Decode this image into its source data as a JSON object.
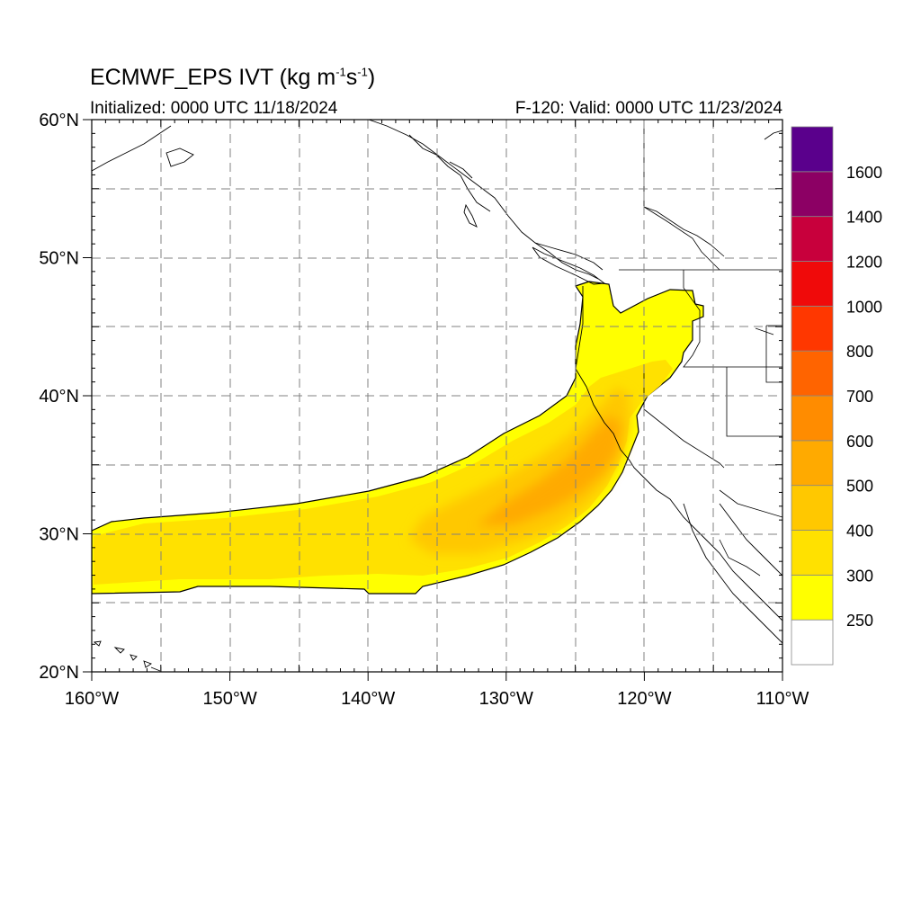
{
  "header": {
    "title_main": "ECMWF_EPS IVT (kg m",
    "title_sup1": "-1",
    "title_mid": "s",
    "title_sup2": "-1",
    "title_end": ")",
    "initialized": "Initialized: 0000 UTC 11/18/2024",
    "valid": "F-120: Valid: 0000 UTC 11/23/2024"
  },
  "map": {
    "projection": "cylindrical equidistant",
    "lon_range": [
      -160,
      -110
    ],
    "lat_range": [
      20,
      60
    ],
    "gridlines": "dashed",
    "lat_labels": [
      "20°N",
      "30°N",
      "40°N",
      "50°N",
      "60°N"
    ],
    "lon_labels": [
      "160°W",
      "150°W",
      "140°W",
      "130°W",
      "120°W",
      "110°W"
    ]
  },
  "colorbar": {
    "levels": [
      "250",
      "300",
      "400",
      "500",
      "600",
      "700",
      "800",
      "1000",
      "1200",
      "1400",
      "1600"
    ],
    "colors": [
      "#ffffff",
      "#ffff00",
      "#ffe100",
      "#ffc800",
      "#ffaa00",
      "#ff8c00",
      "#ff6400",
      "#ff3700",
      "#f00a0a",
      "#c8003c",
      "#8c0064",
      "#5a008c"
    ]
  },
  "ivt_field": {
    "description_units": "kg m-1 s-1",
    "plume_outer_level": 250,
    "core_levels": [
      300,
      400,
      500
    ]
  }
}
